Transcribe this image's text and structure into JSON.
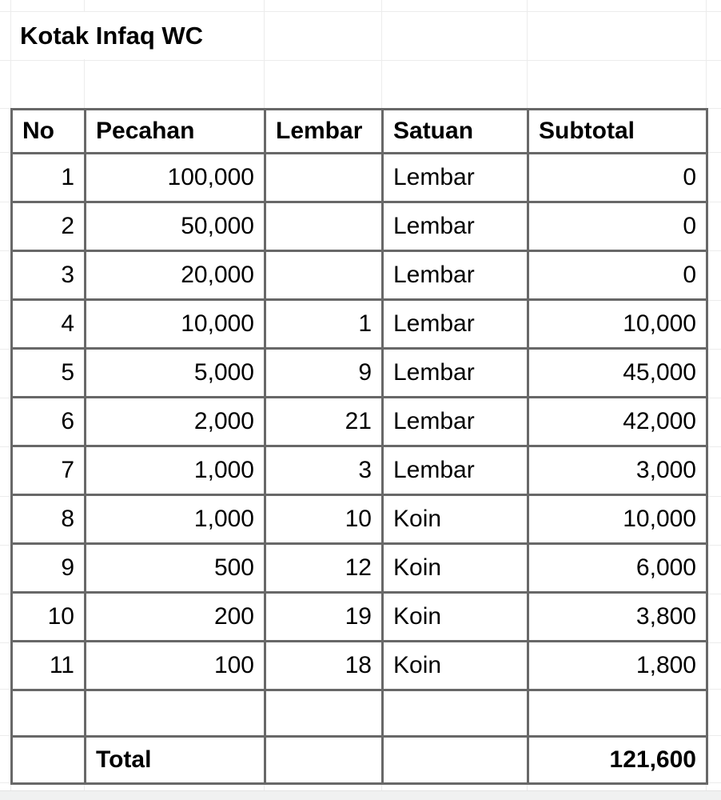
{
  "sheet": {
    "title": "Kotak Infaq WC",
    "colors": {
      "cell_border": "#686868",
      "gridline": "#ececec",
      "text": "#000000",
      "background": "#ffffff",
      "bottom_strip": "#f0f1f1"
    },
    "table": {
      "headers": [
        "No",
        "Pecahan",
        "Lembar",
        "Satuan",
        "Subtotal"
      ],
      "rows": [
        {
          "no": "1",
          "pecahan": "100,000",
          "lembar": "",
          "satuan": "Lembar",
          "subtotal": "0"
        },
        {
          "no": "2",
          "pecahan": "50,000",
          "lembar": "",
          "satuan": "Lembar",
          "subtotal": "0"
        },
        {
          "no": "3",
          "pecahan": "20,000",
          "lembar": "",
          "satuan": "Lembar",
          "subtotal": "0"
        },
        {
          "no": "4",
          "pecahan": "10,000",
          "lembar": "1",
          "satuan": "Lembar",
          "subtotal": "10,000"
        },
        {
          "no": "5",
          "pecahan": "5,000",
          "lembar": "9",
          "satuan": "Lembar",
          "subtotal": "45,000"
        },
        {
          "no": "6",
          "pecahan": "2,000",
          "lembar": "21",
          "satuan": "Lembar",
          "subtotal": "42,000"
        },
        {
          "no": "7",
          "pecahan": "1,000",
          "lembar": "3",
          "satuan": "Lembar",
          "subtotal": "3,000"
        },
        {
          "no": "8",
          "pecahan": "1,000",
          "lembar": "10",
          "satuan": "Koin",
          "subtotal": "10,000"
        },
        {
          "no": "9",
          "pecahan": "500",
          "lembar": "12",
          "satuan": "Koin",
          "subtotal": "6,000"
        },
        {
          "no": "10",
          "pecahan": "200",
          "lembar": "19",
          "satuan": "Koin",
          "subtotal": "3,800"
        },
        {
          "no": "11",
          "pecahan": "100",
          "lembar": "18",
          "satuan": "Koin",
          "subtotal": "1,800"
        }
      ],
      "total_label": "Total",
      "total_value": "121,600"
    }
  }
}
